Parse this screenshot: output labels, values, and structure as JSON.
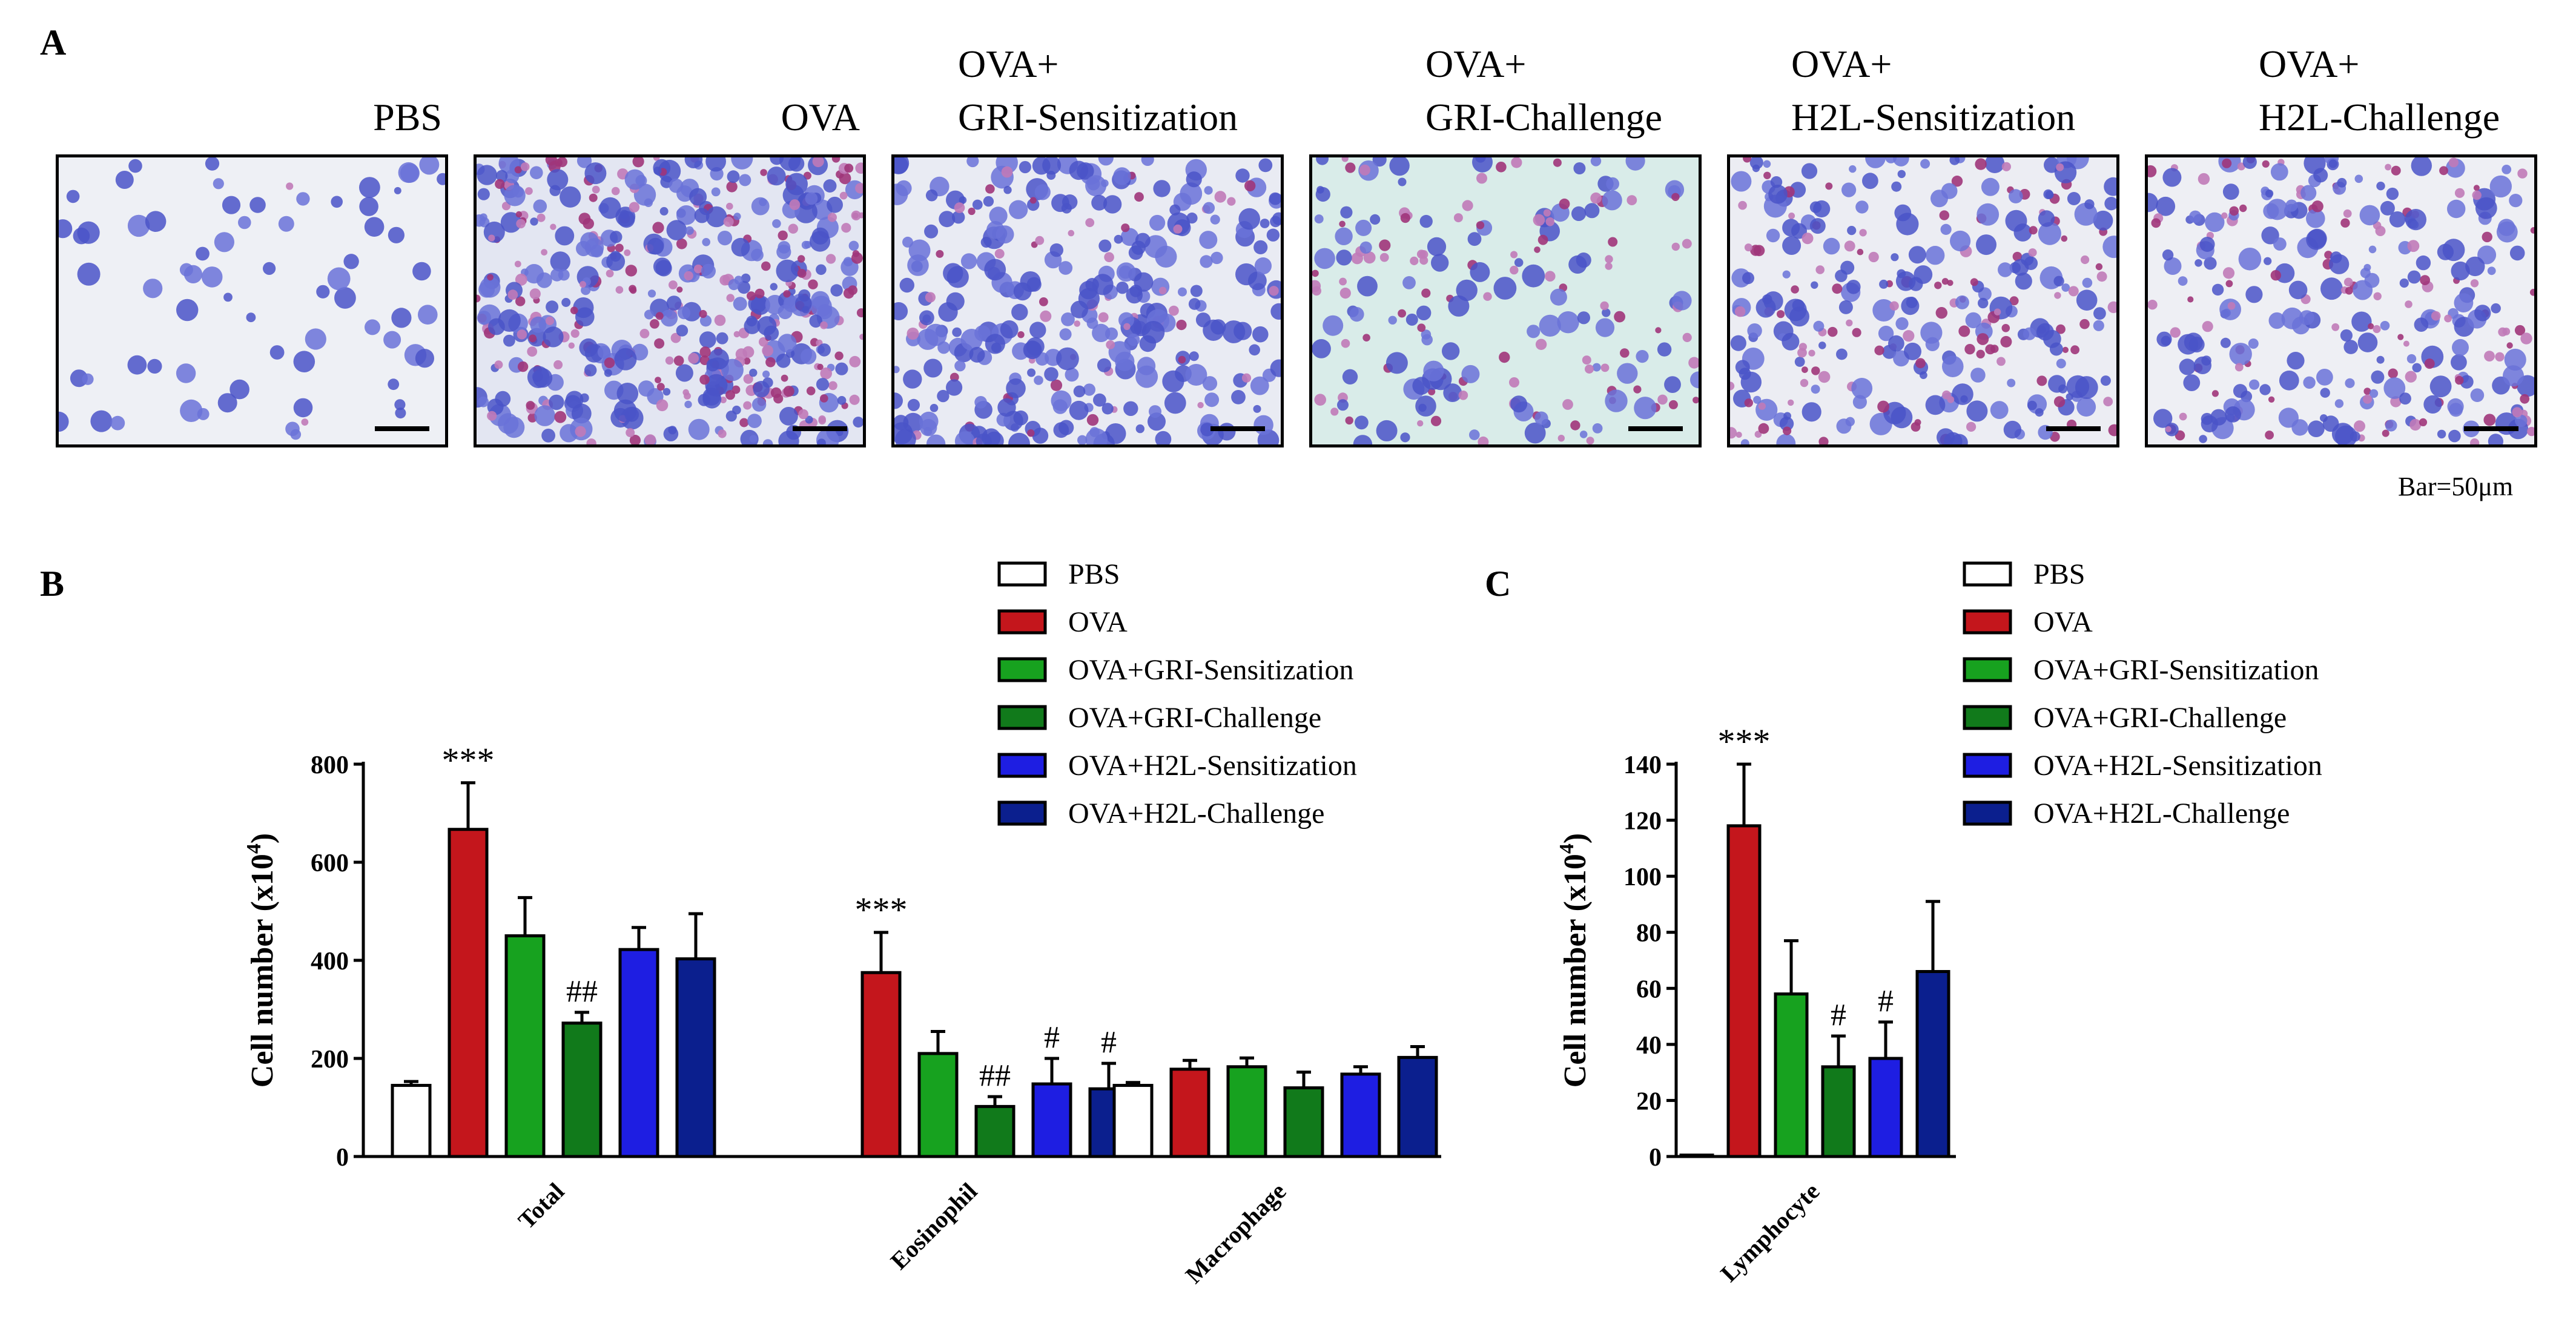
{
  "panels": {
    "a": "A",
    "b": "B",
    "c": "C"
  },
  "micrographs": {
    "labels": [
      "PBS",
      "OVA",
      "OVA+\nGRI-Sensitization",
      "OVA+\nGRI-Challenge",
      "OVA+\nH2L-Sensitization",
      "OVA+\nH2L-Challenge"
    ],
    "bar_note": "Bar=50μm"
  },
  "legend": [
    {
      "label": "PBS",
      "color": "#ffffff"
    },
    {
      "label": "OVA",
      "color": "#c4161c"
    },
    {
      "label": "OVA+GRI-Sensitization",
      "color": "#17a21f"
    },
    {
      "label": "OVA+GRI-Challenge",
      "color": "#117a1b"
    },
    {
      "label": "OVA+H2L-Sensitization",
      "color": "#1e1ee2"
    },
    {
      "label": "OVA+H2L-Challenge",
      "color": "#0b1f8e"
    }
  ],
  "chart_data": [
    {
      "type": "bar",
      "panel": "B",
      "ylabel": "Cell number (x10",
      "ylabel_sup": "4",
      "ylabel_close": ")",
      "ylim": [
        0,
        800
      ],
      "yticks": [
        "0",
        "200",
        "400",
        "600",
        "800"
      ],
      "categories": [
        "Total",
        "Eosinophil",
        "Macrophage"
      ],
      "series": [
        {
          "name": "PBS",
          "values": [
            145,
            null,
            145
          ],
          "errors": [
            8,
            null,
            6
          ],
          "annotations": [
            "",
            "",
            ""
          ]
        },
        {
          "name": "OVA",
          "values": [
            667,
            375,
            178
          ],
          "errors": [
            95,
            82,
            18
          ],
          "annotations": [
            "***",
            "***",
            ""
          ]
        },
        {
          "name": "OVA+GRI-Sensitization",
          "values": [
            450,
            210,
            183
          ],
          "errors": [
            78,
            45,
            18
          ],
          "annotations": [
            "",
            "",
            ""
          ]
        },
        {
          "name": "OVA+GRI-Challenge",
          "values": [
            272,
            102,
            140
          ],
          "errors": [
            22,
            20,
            32
          ],
          "annotations": [
            "##",
            "##",
            ""
          ]
        },
        {
          "name": "OVA+H2L-Sensitization",
          "values": [
            422,
            148,
            168
          ],
          "errors": [
            45,
            52,
            15
          ],
          "annotations": [
            "",
            "#",
            ""
          ]
        },
        {
          "name": "OVA+H2L-Challenge",
          "values": [
            403,
            138,
            202
          ],
          "errors": [
            92,
            52,
            22
          ],
          "annotations": [
            "",
            "#",
            ""
          ]
        }
      ]
    },
    {
      "type": "bar",
      "panel": "C",
      "ylabel": "Cell number (x10",
      "ylabel_sup": "4",
      "ylabel_close": ")",
      "ylim": [
        0,
        140
      ],
      "yticks": [
        "0",
        "20",
        "40",
        "60",
        "80",
        "100",
        "120",
        "140"
      ],
      "categories": [
        "Lymphocyte"
      ],
      "series": [
        {
          "name": "PBS",
          "values": [
            0.5
          ],
          "errors": [
            0
          ],
          "annotations": [
            ""
          ]
        },
        {
          "name": "OVA",
          "values": [
            118
          ],
          "errors": [
            22
          ],
          "annotations": [
            "***"
          ]
        },
        {
          "name": "OVA+GRI-Sensitization",
          "values": [
            58
          ],
          "errors": [
            19
          ],
          "annotations": [
            ""
          ]
        },
        {
          "name": "OVA+GRI-Challenge",
          "values": [
            32
          ],
          "errors": [
            11
          ],
          "annotations": [
            "#"
          ]
        },
        {
          "name": "OVA+H2L-Sensitization",
          "values": [
            35
          ],
          "errors": [
            13
          ],
          "annotations": [
            "#"
          ]
        },
        {
          "name": "OVA+H2L-Challenge",
          "values": [
            66
          ],
          "errors": [
            25
          ],
          "annotations": [
            ""
          ]
        }
      ]
    }
  ]
}
